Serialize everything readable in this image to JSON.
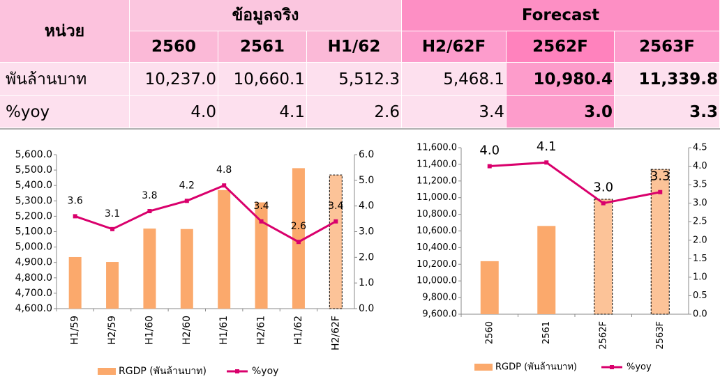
{
  "table": {
    "unit_header": "หน่วย",
    "groups": [
      "ข้อมูลจริง",
      "Forecast"
    ],
    "columns": [
      "2560",
      "2561",
      "H1/62",
      "H2/62F",
      "2562F",
      "2563F"
    ],
    "rows": [
      {
        "label": "พันล้านบาท",
        "cells": [
          "10,237.0",
          "10,660.1",
          "5,512.3",
          "5,468.1",
          "10,980.4",
          "11,339.8"
        ]
      },
      {
        "label": "%yoy",
        "cells": [
          "4.0",
          "4.1",
          "2.6",
          "3.4",
          "3.0",
          "3.3"
        ]
      }
    ]
  },
  "chart_data": [
    {
      "type": "combo",
      "categories": [
        "H1/59",
        "H2/59",
        "H1/60",
        "H2/60",
        "H1/61",
        "H2/61",
        "H1/62",
        "H2/62F"
      ],
      "series": [
        {
          "name": "RGDP (พันล้านบาท)",
          "type": "bar",
          "color": "#fba96c",
          "values": [
            4935,
            4903,
            5120,
            5117,
            5370,
            5290,
            5512.3,
            5468.1
          ],
          "dashed": [
            false,
            false,
            false,
            false,
            false,
            false,
            false,
            true
          ]
        },
        {
          "name": "%yoy",
          "type": "line",
          "axis": "y2",
          "color": "#d9006c",
          "values": [
            3.6,
            3.1,
            3.8,
            4.2,
            4.8,
            3.4,
            2.6,
            3.4
          ]
        }
      ],
      "ylim": [
        4600,
        5600
      ],
      "yticks": [
        {
          "value": 4600,
          "label": "4,600.0"
        },
        {
          "value": 4700,
          "label": "4,700.0"
        },
        {
          "value": 4800,
          "label": "4,800.0"
        },
        {
          "value": 4900,
          "label": "4,900.0"
        },
        {
          "value": 5000,
          "label": "5,000.0"
        },
        {
          "value": 5100,
          "label": "5,100.0"
        },
        {
          "value": 5200,
          "label": "5,200.0"
        },
        {
          "value": 5300,
          "label": "5,300.0"
        },
        {
          "value": 5400,
          "label": "5,400.0"
        },
        {
          "value": 5500,
          "label": "5,500.0"
        },
        {
          "value": 5600,
          "label": "5,600.0"
        }
      ],
      "y2lim": [
        0,
        6
      ],
      "y2ticks": [
        {
          "value": 0,
          "label": "0.0"
        },
        {
          "value": 1,
          "label": "1.0"
        },
        {
          "value": 2,
          "label": "2.0"
        },
        {
          "value": 3,
          "label": "3.0"
        },
        {
          "value": 4,
          "label": "4.0"
        },
        {
          "value": 5,
          "label": "5.0"
        },
        {
          "value": 6,
          "label": "6.0"
        }
      ],
      "grid": false,
      "legend": "bottom"
    },
    {
      "type": "combo",
      "categories": [
        "2560",
        "2561",
        "2562F",
        "2563F"
      ],
      "series": [
        {
          "name": "RGDP (พันล้านบาท)",
          "type": "bar",
          "color": "#fba96c",
          "values": [
            10237.0,
            10660.1,
            10980.4,
            11339.8
          ],
          "dashed": [
            false,
            false,
            true,
            true
          ]
        },
        {
          "name": "%yoy",
          "type": "line",
          "axis": "y2",
          "color": "#d9006c",
          "values": [
            4.0,
            4.1,
            3.0,
            3.3
          ],
          "value_labels": [
            "4.0",
            "4.1",
            "3.0",
            "3.3"
          ]
        }
      ],
      "ylim": [
        9600,
        11600
      ],
      "yticks": [
        {
          "value": 9600,
          "label": "9,600.0"
        },
        {
          "value": 9800,
          "label": "9,800.0"
        },
        {
          "value": 10000,
          "label": "10,000.0"
        },
        {
          "value": 10200,
          "label": "10,200.0"
        },
        {
          "value": 10400,
          "label": "10,400.0"
        },
        {
          "value": 10600,
          "label": "10,600.0"
        },
        {
          "value": 10800,
          "label": "10,800.0"
        },
        {
          "value": 11000,
          "label": "11,000.0"
        },
        {
          "value": 11200,
          "label": "11,200.0"
        },
        {
          "value": 11400,
          "label": "11,400.0"
        },
        {
          "value": 11600,
          "label": "11,600.0"
        }
      ],
      "y2lim": [
        0,
        4.5
      ],
      "y2ticks": [
        {
          "value": 0,
          "label": "0.0"
        },
        {
          "value": 0.5,
          "label": "0.5"
        },
        {
          "value": 1,
          "label": "1.0"
        },
        {
          "value": 1.5,
          "label": "1.5"
        },
        {
          "value": 2,
          "label": "2.0"
        },
        {
          "value": 2.5,
          "label": "2.5"
        },
        {
          "value": 3,
          "label": "3.0"
        },
        {
          "value": 3.5,
          "label": "3.5"
        },
        {
          "value": 4,
          "label": "4.0"
        },
        {
          "value": 4.5,
          "label": "4.5"
        }
      ],
      "grid": false,
      "legend": "bottom"
    }
  ]
}
